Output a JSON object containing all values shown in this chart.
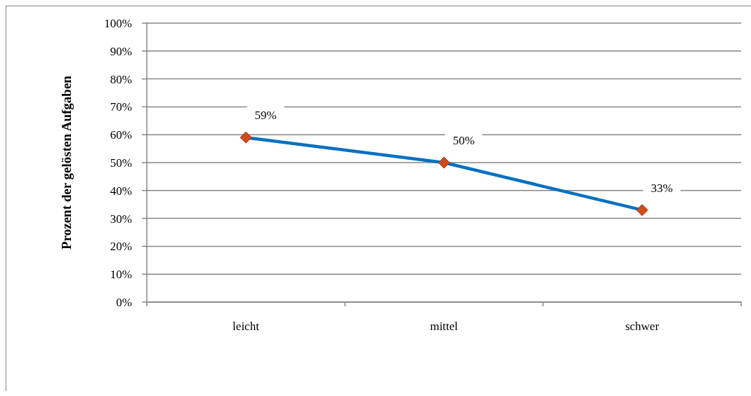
{
  "chart_data": {
    "type": "line",
    "ylabel": "Prozent der gelösten Aufgaben",
    "categories": [
      "leicht",
      "mittel",
      "schwer"
    ],
    "series": [
      {
        "color": "#0070c0",
        "colors": [
          "#d24a1c",
          "#d24a1c",
          "#d24a1c"
        ],
        "values": [
          59,
          50,
          33
        ],
        "value_labels": [
          "59%",
          "50%",
          "33%"
        ]
      }
    ],
    "ylim": [
      0,
      100
    ],
    "yticks": [
      {
        "value": 0,
        "label": "0%"
      },
      {
        "value": 10,
        "label": "10%"
      },
      {
        "value": 20,
        "label": "20%"
      },
      {
        "value": 30,
        "label": "30%"
      },
      {
        "value": 40,
        "label": "40%"
      },
      {
        "value": 50,
        "label": "50%"
      },
      {
        "value": 60,
        "label": "60%"
      },
      {
        "value": 70,
        "label": "70%"
      },
      {
        "value": 80,
        "label": "80%"
      },
      {
        "value": 90,
        "label": "90%"
      },
      {
        "value": 100,
        "label": "100%"
      }
    ],
    "grid": "y",
    "marker": "diamond"
  }
}
